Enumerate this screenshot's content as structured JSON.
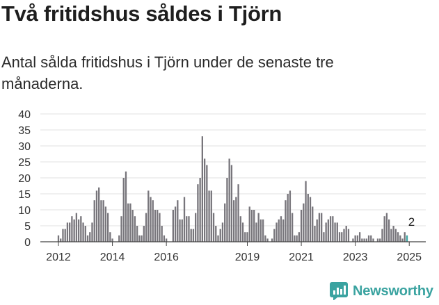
{
  "header": {
    "title": "Två fritidshus såldes i Tjörn",
    "subtitle": "Antal sålda fritidshus i Tjörn under de senaste tre månaderna."
  },
  "brand": {
    "name": "Newsworthy",
    "icon": "newsworthy-chart-icon",
    "color": "#3aa3a0"
  },
  "colors": {
    "bar": "#77757b",
    "highlight": "#3aa3a0",
    "grid": "#e2e2e2",
    "axis": "#444444"
  },
  "chart_data": {
    "type": "bar",
    "title": "Två fritidshus såldes i Tjörn",
    "xlabel": "",
    "ylabel": "",
    "ylim": [
      0,
      40
    ],
    "yticks": [
      0,
      5,
      10,
      15,
      20,
      25,
      30,
      35,
      40
    ],
    "grid": true,
    "start": "2012-01",
    "frequency": "monthly",
    "xticks": [
      {
        "label": "2012",
        "index": 0
      },
      {
        "label": "2014",
        "index": 24
      },
      {
        "label": "2016",
        "index": 48
      },
      {
        "label": "2019",
        "index": 84
      },
      {
        "label": "2021",
        "index": 108
      },
      {
        "label": "2023",
        "index": 132
      },
      {
        "label": "2025",
        "index": 156
      }
    ],
    "annotation": {
      "text": "2",
      "index": 157
    },
    "values": [
      2,
      1,
      4,
      4,
      6,
      6,
      8,
      7,
      9,
      7,
      8,
      6,
      5,
      2,
      3,
      6,
      13,
      16,
      17,
      13,
      13,
      11,
      9,
      3,
      1,
      0,
      0,
      2,
      8,
      20,
      22,
      12,
      12,
      10,
      8,
      5,
      2,
      2,
      5,
      9,
      16,
      14,
      13,
      10,
      10,
      9,
      5,
      2,
      1,
      0,
      0,
      10,
      11,
      13,
      7,
      7,
      14,
      8,
      8,
      4,
      4,
      9,
      18,
      20,
      33,
      26,
      24,
      16,
      16,
      9,
      5,
      2,
      4,
      6,
      12,
      20,
      26,
      24,
      13,
      14,
      18,
      8,
      6,
      3,
      3,
      11,
      10,
      10,
      6,
      9,
      7,
      7,
      2,
      1,
      0,
      1,
      4,
      6,
      7,
      8,
      7,
      13,
      15,
      16,
      9,
      2,
      2,
      3,
      10,
      12,
      19,
      15,
      14,
      11,
      5,
      7,
      9,
      9,
      3,
      6,
      7,
      8,
      8,
      6,
      6,
      3,
      3,
      4,
      5,
      4,
      0,
      1,
      2,
      2,
      3,
      1,
      1,
      1,
      2,
      2,
      1,
      0,
      1,
      1,
      4,
      8,
      9,
      7,
      4,
      5,
      4,
      3,
      2,
      1,
      3,
      2
    ]
  }
}
